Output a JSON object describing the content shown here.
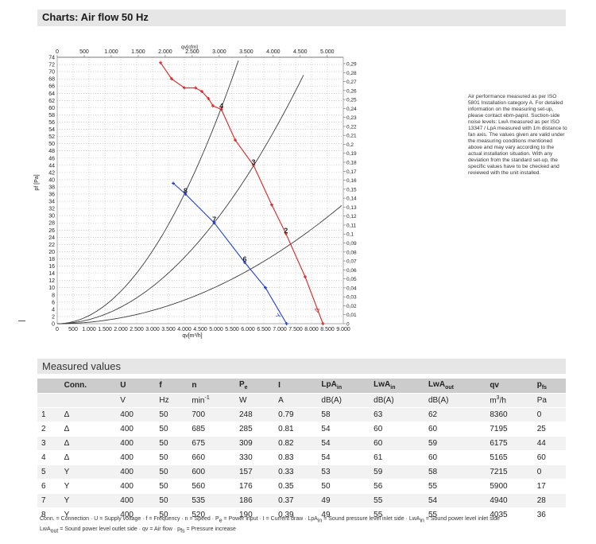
{
  "header": {
    "title": "Charts: Air flow 50 Hz"
  },
  "note": "Air performance measured as per ISO 5801 Installation category A. For detailed information on the measuring set-up, please contact ebm-papst. Suction-side noise levels: LwA measured as per ISO 13347 / LpA measured with 1m distance to fan axis. The values given are valid under the measuring conditions mentioned above and may vary according to the actual installation situation. With any deviation from the standard set-up, the specific values have to be checked and reviewed with the unit installed.",
  "chart_data": {
    "type": "line",
    "xlabel_bottom": "qv[m³/h]",
    "xlabel_top": "qv[cfm]",
    "ylabel_left": "pf [Pa]",
    "ylabel_right": "pf [inH2O]",
    "xlim": [
      0,
      9000
    ],
    "ylim": [
      0,
      74
    ],
    "x_ticks_bottom": [
      "0",
      "500",
      "1.000",
      "1.500",
      "2.000",
      "2.500",
      "3.000",
      "3.500",
      "4.000",
      "4.500",
      "5.000",
      "5.500",
      "6.000",
      "6.500",
      "7.000",
      "7.500",
      "8.000",
      "8.500",
      "9.000"
    ],
    "x_ticks_top": [
      {
        "cfm": 0,
        "label": "0"
      },
      {
        "cfm": 500,
        "label": "500"
      },
      {
        "cfm": 1000,
        "label": "1.000"
      },
      {
        "cfm": 1500,
        "label": "1.500"
      },
      {
        "cfm": 2000,
        "label": "2.000"
      },
      {
        "cfm": 2500,
        "label": "2.500"
      },
      {
        "cfm": 3000,
        "label": "3.000"
      },
      {
        "cfm": 3500,
        "label": "3.500"
      },
      {
        "cfm": 4000,
        "label": "4.000"
      },
      {
        "cfm": 4500,
        "label": "4.500"
      },
      {
        "cfm": 5000,
        "label": "5.000"
      }
    ],
    "y_ticks_left": [
      "0",
      "2",
      "4",
      "6",
      "8",
      "10",
      "12",
      "14",
      "16",
      "18",
      "20",
      "22",
      "24",
      "26",
      "28",
      "30",
      "32",
      "34",
      "36",
      "38",
      "40",
      "42",
      "44",
      "46",
      "48",
      "50",
      "52",
      "54",
      "56",
      "58",
      "60",
      "62",
      "64",
      "66",
      "68",
      "70",
      "72",
      "74"
    ],
    "y_ticks_right": [
      {
        "v": 0,
        "label": "0"
      },
      {
        "v": 0.01,
        "label": "0,01"
      },
      {
        "v": 0.02,
        "label": "0,02"
      },
      {
        "v": 0.03,
        "label": "0,03"
      },
      {
        "v": 0.04,
        "label": "0,04"
      },
      {
        "v": 0.05,
        "label": "0,05"
      },
      {
        "v": 0.06,
        "label": "0,06"
      },
      {
        "v": 0.07,
        "label": "0,07"
      },
      {
        "v": 0.08,
        "label": "0,08"
      },
      {
        "v": 0.09,
        "label": "0,09"
      },
      {
        "v": 0.1,
        "label": "0,1"
      },
      {
        "v": 0.11,
        "label": "0,11"
      },
      {
        "v": 0.12,
        "label": "0,12"
      },
      {
        "v": 0.13,
        "label": "0,13"
      },
      {
        "v": 0.14,
        "label": "0,14"
      },
      {
        "v": 0.15,
        "label": "0,15"
      },
      {
        "v": 0.16,
        "label": "0,16"
      },
      {
        "v": 0.17,
        "label": "0,17"
      },
      {
        "v": 0.18,
        "label": "0,18"
      },
      {
        "v": 0.19,
        "label": "0,19"
      },
      {
        "v": 0.2,
        "label": "0,2"
      },
      {
        "v": 0.21,
        "label": "0,21"
      },
      {
        "v": 0.22,
        "label": "0,22"
      },
      {
        "v": 0.23,
        "label": "0,23"
      },
      {
        "v": 0.24,
        "label": "0,24"
      },
      {
        "v": 0.25,
        "label": "0,25"
      },
      {
        "v": 0.26,
        "label": "0,26"
      },
      {
        "v": 0.27,
        "label": "0,27"
      },
      {
        "v": 0.28,
        "label": "0,28"
      },
      {
        "v": 0.29,
        "label": "0,29"
      },
      {
        "v": 0.3,
        "label": "0,3"
      }
    ],
    "grid": true,
    "series": [
      {
        "name": "Δ",
        "color": "#e02020",
        "label_pos": [
          8200,
          3
        ],
        "points": [
          [
            3250,
            72.5
          ],
          [
            3600,
            68
          ],
          [
            4000,
            65.5
          ],
          [
            4350,
            65.5
          ],
          [
            4550,
            64.5
          ],
          [
            4760,
            62.5
          ],
          [
            4900,
            60.5
          ],
          [
            5165,
            59.5
          ],
          [
            5600,
            51
          ],
          [
            6175,
            44
          ],
          [
            6750,
            33
          ],
          [
            7195,
            25
          ],
          [
            7800,
            13
          ],
          [
            8360,
            0
          ]
        ]
      },
      {
        "name": "Y",
        "color": "#1e3ee0",
        "label_pos": [
          7000,
          1.5
        ],
        "points": [
          [
            3650,
            39
          ],
          [
            4035,
            36
          ],
          [
            4940,
            28
          ],
          [
            5900,
            17
          ],
          [
            6550,
            10
          ],
          [
            7215,
            0
          ]
        ]
      }
    ],
    "system_curves": [
      {
        "k": 2.25e-06,
        "xmax": 5750,
        "label_x": 5165,
        "label": "4"
      },
      {
        "k": 1.15e-06,
        "xmax": 7750,
        "label_x": 6175,
        "label": "3"
      },
      {
        "k": 4.1e-07,
        "xmax": 8950,
        "label_x": 7195,
        "label": "2"
      }
    ],
    "point_labels": [
      {
        "x": 4035,
        "y": 36,
        "text": "8"
      },
      {
        "x": 4940,
        "y": 28,
        "text": "7"
      },
      {
        "x": 5900,
        "y": 17,
        "text": "6"
      },
      {
        "x": 5165,
        "y": 59.5,
        "text": "4"
      },
      {
        "x": 6175,
        "y": 44,
        "text": "3"
      },
      {
        "x": 7195,
        "y": 25,
        "text": "2"
      }
    ]
  },
  "measured": {
    "title": "Measured values",
    "columns": [
      {
        "main": "",
        "sub": ""
      },
      {
        "main": "Conn.",
        "sub": ""
      },
      {
        "main": "U",
        "sub": ""
      },
      {
        "main": "f",
        "sub": ""
      },
      {
        "main": "n",
        "sub": ""
      },
      {
        "main": "P",
        "sub": "e"
      },
      {
        "main": "I",
        "sub": ""
      },
      {
        "main": "LpA",
        "sub": "in"
      },
      {
        "main": "LwA",
        "sub": "in"
      },
      {
        "main": "LwA",
        "sub": "out"
      },
      {
        "main": "qv",
        "sub": ""
      },
      {
        "main": "p",
        "sub": "fs"
      }
    ],
    "units": [
      {
        "main": "",
        "sup": ""
      },
      {
        "main": "",
        "sup": ""
      },
      {
        "main": "V",
        "sup": ""
      },
      {
        "main": "Hz",
        "sup": ""
      },
      {
        "main": "min",
        "sup": "-1"
      },
      {
        "main": "W",
        "sup": ""
      },
      {
        "main": "A",
        "sup": ""
      },
      {
        "main": "dB(A)",
        "sup": ""
      },
      {
        "main": "dB(A)",
        "sup": ""
      },
      {
        "main": "dB(A)",
        "sup": ""
      },
      {
        "main": "m",
        "sup": "3",
        "tail": "/h"
      },
      {
        "main": "Pa",
        "sup": ""
      }
    ],
    "rows": [
      [
        "1",
        "Δ",
        "400",
        "50",
        "700",
        "248",
        "0.79",
        "58",
        "63",
        "62",
        "8360",
        "0"
      ],
      [
        "2",
        "Δ",
        "400",
        "50",
        "685",
        "285",
        "0.81",
        "54",
        "60",
        "60",
        "7195",
        "25"
      ],
      [
        "3",
        "Δ",
        "400",
        "50",
        "675",
        "309",
        "0.82",
        "54",
        "60",
        "59",
        "6175",
        "44"
      ],
      [
        "4",
        "Δ",
        "400",
        "50",
        "660",
        "330",
        "0.83",
        "54",
        "61",
        "60",
        "5165",
        "60"
      ],
      [
        "5",
        "Y",
        "400",
        "50",
        "600",
        "157",
        "0.33",
        "53",
        "59",
        "58",
        "7215",
        "0"
      ],
      [
        "6",
        "Y",
        "400",
        "50",
        "560",
        "176",
        "0.35",
        "50",
        "56",
        "55",
        "5900",
        "17"
      ],
      [
        "7",
        "Y",
        "400",
        "50",
        "535",
        "186",
        "0.37",
        "49",
        "55",
        "54",
        "4940",
        "28"
      ],
      [
        "8",
        "Y",
        "400",
        "50",
        "520",
        "190",
        "0.39",
        "49",
        "55",
        "55",
        "4035",
        "36"
      ]
    ]
  },
  "legend": {
    "line1": [
      {
        "t": "Conn. = Connection · U = Supply voltage · f = Frequency · n = Speed · P"
      },
      {
        "t": "e",
        "sub": true
      },
      {
        "t": " = Power input · I = Current draw · LpA"
      },
      {
        "t": "in",
        "sub": true
      },
      {
        "t": " = Sound pressure level inlet side · LwA"
      },
      {
        "t": "in",
        "sub": true
      },
      {
        "t": " = Sound power level inlet side"
      }
    ],
    "line2": [
      {
        "t": "LwA"
      },
      {
        "t": "out",
        "sub": true
      },
      {
        "t": " = Sound power level outlet side · qv = Air flow · p"
      },
      {
        "t": "fs",
        "sub": true
      },
      {
        "t": " = Pressure increase"
      }
    ]
  }
}
